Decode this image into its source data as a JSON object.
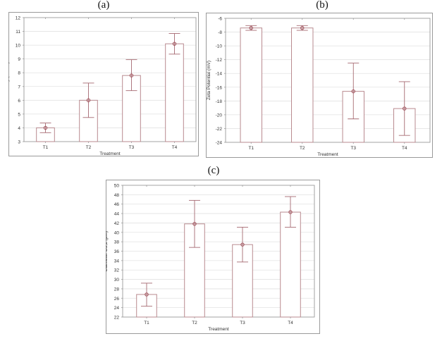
{
  "panels": [
    {
      "label": "(a)"
    },
    {
      "label": "(b)"
    },
    {
      "label": "(c)"
    }
  ],
  "colors": {
    "frame": "#9a9a9a",
    "grid": "#e2e2e2",
    "bar_edge": "#b88a8f",
    "error_bar": "#a66a72",
    "mean_marker": "#a0505a",
    "text": "#333333"
  },
  "chart_data": [
    {
      "panel": "(a)",
      "type": "bar",
      "title": "",
      "xlabel": "Treatment",
      "ylabel": "Viscosity (mPa.s)",
      "categories": [
        "T1",
        "T2",
        "T3",
        "T4"
      ],
      "values": [
        4.0,
        6.0,
        7.8,
        10.1
      ],
      "error_low": [
        3.65,
        4.75,
        6.7,
        9.35
      ],
      "error_high": [
        4.35,
        7.25,
        8.95,
        10.85
      ],
      "ylim": [
        3,
        12
      ],
      "yticks": [
        3,
        4,
        5,
        6,
        7,
        8,
        9,
        10,
        11,
        12
      ],
      "grid": true,
      "legend": null
    },
    {
      "panel": "(b)",
      "type": "bar",
      "title": "",
      "xlabel": "Treatment",
      "ylabel": "Zeta Potential (mV)",
      "categories": [
        "T1",
        "T2",
        "T3",
        "T4"
      ],
      "values": [
        -7.4,
        -7.4,
        -16.6,
        -19.1
      ],
      "error_low": [
        -7.75,
        -7.75,
        -20.6,
        -23.0
      ],
      "error_high": [
        -7.05,
        -7.05,
        -12.5,
        -15.2
      ],
      "ylim": [
        -24,
        -6
      ],
      "yticks": [
        -24,
        -22,
        -20,
        -18,
        -16,
        -14,
        -12,
        -10,
        -8,
        -6
      ],
      "grid": true,
      "legend": null
    },
    {
      "panel": "(c)",
      "type": "bar",
      "title": "",
      "xlabel": "Treatment",
      "ylabel": "Diameter D3,2 (µm)",
      "categories": [
        "T1",
        "T2",
        "T3",
        "T4"
      ],
      "values": [
        26.8,
        41.8,
        37.4,
        44.3
      ],
      "error_low": [
        24.3,
        36.8,
        33.7,
        41.1
      ],
      "error_high": [
        29.2,
        46.8,
        41.1,
        47.6
      ],
      "ylim": [
        22,
        50
      ],
      "yticks": [
        22,
        24,
        26,
        28,
        30,
        32,
        34,
        36,
        38,
        40,
        42,
        44,
        46,
        48,
        50
      ],
      "grid": true,
      "legend": null
    }
  ]
}
